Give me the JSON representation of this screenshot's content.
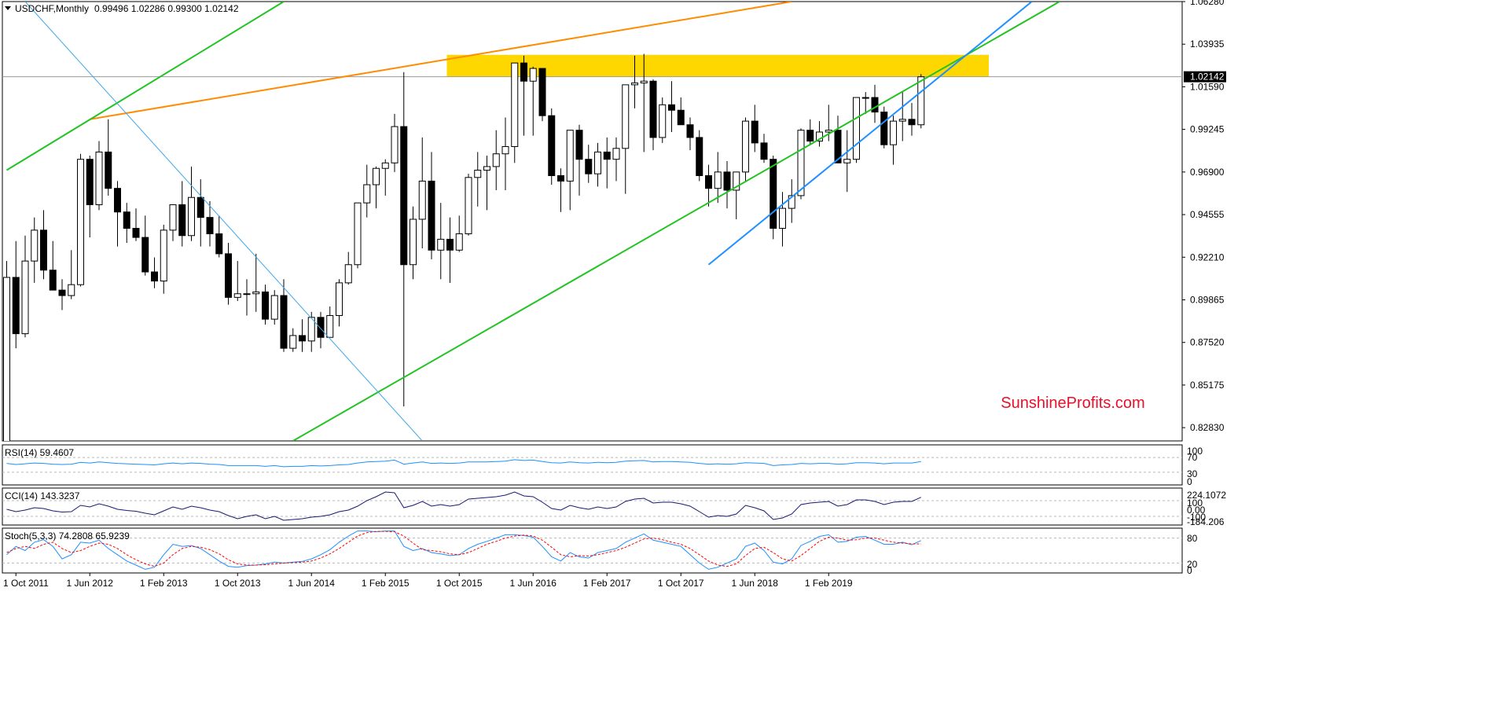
{
  "chart_header": {
    "symbol": "USDCHF,Monthly",
    "ohlc": "0.99496 1.02286 0.99300 1.02142"
  },
  "watermark": "SunshineProfits.com",
  "colors": {
    "bull_body": "#ffffff",
    "bear_body": "#000000",
    "resistance_zone": "#ffd700",
    "orange_line": "#ff8c00",
    "green_line": "#22c322",
    "blue_line": "#1e90ff",
    "light_blue_line": "#3ea8e8",
    "indicator_line": "#191970",
    "rsi_line": "#1e90ff",
    "stoch_signal": "#ff0000",
    "watermark": "#e8102a",
    "current_price_bg": "#000000"
  },
  "chart_data": [
    {
      "type": "candlestick",
      "title": "USDCHF,Monthly",
      "y_ticks": [
        "1.06280",
        "1.03935",
        "1.01590",
        "0.99245",
        "0.96900",
        "0.94555",
        "0.92210",
        "0.89865",
        "0.87520",
        "0.85175",
        "0.82830"
      ],
      "current_price": 1.02142,
      "current_price_label": "1.02142",
      "x_tick_labels": [
        "1 Oct 2011",
        "1 Jun 2012",
        "1 Feb 2013",
        "1 Oct 2013",
        "1 Jun 2014",
        "1 Feb 2015",
        "1 Oct 2015",
        "1 Jun 2016",
        "1 Feb 2017",
        "1 Oct 2017",
        "1 Jun 2018",
        "1 Feb 2019"
      ],
      "start_month": "2011-09",
      "candles": [
        [
          0.813,
          0.92,
          0.8,
          0.911
        ],
        [
          0.911,
          0.931,
          0.872,
          0.88
        ],
        [
          0.88,
          0.934,
          0.878,
          0.92
        ],
        [
          0.92,
          0.944,
          0.908,
          0.937
        ],
        [
          0.937,
          0.948,
          0.91,
          0.915
        ],
        [
          0.915,
          0.931,
          0.904,
          0.904
        ],
        [
          0.904,
          0.91,
          0.893,
          0.901
        ],
        [
          0.901,
          0.926,
          0.899,
          0.907
        ],
        [
          0.907,
          0.979,
          0.906,
          0.976
        ],
        [
          0.976,
          0.978,
          0.933,
          0.951
        ],
        [
          0.951,
          0.986,
          0.948,
          0.98
        ],
        [
          0.98,
          0.998,
          0.956,
          0.96
        ],
        [
          0.96,
          0.964,
          0.928,
          0.947
        ],
        [
          0.947,
          0.952,
          0.93,
          0.938
        ],
        [
          0.938,
          0.949,
          0.931,
          0.933
        ],
        [
          0.933,
          0.945,
          0.912,
          0.914
        ],
        [
          0.914,
          0.922,
          0.905,
          0.909
        ],
        [
          0.909,
          0.94,
          0.902,
          0.937
        ],
        [
          0.937,
          0.951,
          0.931,
          0.951
        ],
        [
          0.951,
          0.964,
          0.928,
          0.934
        ],
        [
          0.934,
          0.972,
          0.931,
          0.955
        ],
        [
          0.955,
          0.965,
          0.928,
          0.944
        ],
        [
          0.944,
          0.953,
          0.928,
          0.935
        ],
        [
          0.935,
          0.945,
          0.922,
          0.924
        ],
        [
          0.924,
          0.93,
          0.896,
          0.9
        ],
        [
          0.9,
          0.92,
          0.898,
          0.902
        ],
        [
          0.902,
          0.91,
          0.89,
          0.902
        ],
        [
          0.902,
          0.924,
          0.892,
          0.903
        ],
        [
          0.903,
          0.907,
          0.885,
          0.888
        ],
        [
          0.888,
          0.904,
          0.885,
          0.901
        ],
        [
          0.901,
          0.91,
          0.87,
          0.872
        ],
        [
          0.872,
          0.883,
          0.87,
          0.879
        ],
        [
          0.879,
          0.888,
          0.87,
          0.876
        ],
        [
          0.876,
          0.892,
          0.87,
          0.889
        ],
        [
          0.889,
          0.892,
          0.872,
          0.878
        ],
        [
          0.878,
          0.895,
          0.878,
          0.89
        ],
        [
          0.89,
          0.91,
          0.884,
          0.908
        ],
        [
          0.908,
          0.925,
          0.907,
          0.918
        ],
        [
          0.918,
          0.952,
          0.916,
          0.952
        ],
        [
          0.952,
          0.973,
          0.944,
          0.962
        ],
        [
          0.962,
          0.972,
          0.949,
          0.971
        ],
        [
          0.971,
          0.976,
          0.956,
          0.974
        ],
        [
          0.974,
          1.001,
          0.969,
          0.994
        ],
        [
          0.994,
          1.024,
          0.84,
          0.918
        ],
        [
          0.918,
          0.95,
          0.91,
          0.943
        ],
        [
          0.943,
          0.988,
          0.927,
          0.964
        ],
        [
          0.964,
          0.98,
          0.921,
          0.926
        ],
        [
          0.926,
          0.952,
          0.91,
          0.932
        ],
        [
          0.932,
          0.944,
          0.908,
          0.926
        ],
        [
          0.926,
          0.945,
          0.925,
          0.935
        ],
        [
          0.935,
          0.968,
          0.934,
          0.966
        ],
        [
          0.966,
          0.98,
          0.95,
          0.97
        ],
        [
          0.97,
          0.978,
          0.948,
          0.972
        ],
        [
          0.972,
          0.992,
          0.959,
          0.979
        ],
        [
          0.979,
          0.999,
          0.959,
          0.983
        ],
        [
          0.983,
          1.029,
          0.974,
          1.029
        ],
        [
          1.029,
          1.033,
          0.989,
          1.019
        ],
        [
          1.019,
          1.027,
          0.989,
          1.026
        ],
        [
          1.026,
          1.026,
          0.997,
          1.0
        ],
        [
          1.0,
          1.004,
          0.962,
          0.967
        ],
        [
          0.967,
          0.971,
          0.947,
          0.964
        ],
        [
          0.964,
          0.992,
          0.948,
          0.992
        ],
        [
          0.992,
          0.995,
          0.956,
          0.976
        ],
        [
          0.976,
          0.984,
          0.963,
          0.968
        ],
        [
          0.968,
          0.985,
          0.961,
          0.98
        ],
        [
          0.98,
          0.988,
          0.96,
          0.976
        ],
        [
          0.976,
          0.988,
          0.964,
          0.982
        ],
        [
          0.982,
          1.016,
          0.957,
          1.017
        ],
        [
          1.017,
          1.033,
          1.004,
          1.018
        ],
        [
          1.018,
          1.034,
          0.98,
          1.019
        ],
        [
          1.019,
          1.02,
          0.981,
          0.988
        ],
        [
          0.988,
          1.01,
          0.985,
          1.006
        ],
        [
          1.006,
          1.019,
          0.991,
          1.003
        ],
        [
          1.003,
          1.01,
          0.996,
          0.995
        ],
        [
          0.995,
          0.999,
          0.981,
          0.988
        ],
        [
          0.988,
          0.992,
          0.964,
          0.967
        ],
        [
          0.967,
          0.973,
          0.95,
          0.96
        ],
        [
          0.96,
          0.98,
          0.952,
          0.969
        ],
        [
          0.969,
          0.975,
          0.949,
          0.959
        ],
        [
          0.959,
          0.969,
          0.943,
          0.969
        ],
        [
          0.969,
          0.999,
          0.964,
          0.997
        ],
        [
          0.997,
          1.006,
          0.98,
          0.985
        ],
        [
          0.985,
          0.99,
          0.974,
          0.976
        ],
        [
          0.976,
          0.978,
          0.932,
          0.938
        ],
        [
          0.938,
          0.958,
          0.928,
          0.949
        ],
        [
          0.949,
          0.965,
          0.941,
          0.956
        ],
        [
          0.956,
          0.993,
          0.954,
          0.992
        ],
        [
          0.992,
          0.998,
          0.984,
          0.986
        ],
        [
          0.986,
          0.997,
          0.983,
          0.991
        ],
        [
          0.991,
          1.006,
          0.986,
          0.992
        ],
        [
          0.992,
          1.0,
          0.976,
          0.974
        ],
        [
          0.974,
          0.992,
          0.958,
          0.976
        ],
        [
          0.976,
          1.01,
          0.974,
          1.01
        ],
        [
          1.01,
          1.013,
          1.001,
          1.01
        ],
        [
          1.01,
          1.017,
          0.996,
          1.002
        ],
        [
          1.002,
          1.005,
          0.982,
          0.984
        ],
        [
          0.984,
          1.0,
          0.973,
          0.997
        ],
        [
          0.997,
          1.013,
          0.986,
          0.998
        ],
        [
          0.998,
          1.007,
          0.989,
          0.995
        ],
        [
          0.995,
          1.0229,
          0.993,
          1.0214
        ]
      ],
      "annotations": {
        "resistance_zone": {
          "start_index": 48,
          "end_index": 106,
          "low": 1.0214,
          "high": 1.0335
        },
        "lines": [
          {
            "color_key": "orange_line",
            "from": [
              9,
              0.998
            ],
            "to": [
              85,
              1.0628
            ]
          },
          {
            "color_key": "green_line",
            "from": [
              0,
              0.97
            ],
            "to": [
              30,
              1.0628
            ]
          },
          {
            "color_key": "green_line",
            "from": [
              31,
              0.821
            ],
            "to": [
              114,
              1.0628
            ]
          },
          {
            "color_key": "light_blue_line",
            "from": [
              2,
              1.0628
            ],
            "to": [
              45,
              0.821
            ]
          },
          {
            "color_key": "blue_line",
            "from": [
              76,
              0.918
            ],
            "to": [
              111,
              1.0628
            ]
          }
        ]
      }
    },
    {
      "type": "line",
      "title": "RSI(14) 59.4607",
      "ylim": [
        0,
        100
      ],
      "y_ticks": [
        "100",
        "70",
        "30",
        "0"
      ],
      "levels": [
        70,
        30
      ],
      "series": [
        {
          "values": [
            54,
            51,
            53,
            55,
            54,
            52,
            51,
            52,
            57,
            55,
            58,
            56,
            54,
            53,
            52,
            51,
            50,
            53,
            55,
            53,
            55,
            54,
            52,
            51,
            48,
            48,
            48,
            48,
            46,
            48,
            45,
            46,
            46,
            48,
            47,
            48,
            50,
            51,
            55,
            58,
            59,
            60,
            63,
            52,
            55,
            58,
            54,
            55,
            54,
            55,
            58,
            58,
            58,
            59,
            60,
            64,
            62,
            63,
            59,
            56,
            55,
            58,
            56,
            55,
            57,
            56,
            57,
            60,
            61,
            62,
            58,
            59,
            59,
            58,
            57,
            54,
            52,
            53,
            52,
            53,
            56,
            55,
            54,
            48,
            50,
            51,
            54,
            53,
            54,
            54,
            52,
            53,
            56,
            56,
            55,
            53,
            55,
            55,
            55,
            59
          ]
        }
      ]
    },
    {
      "type": "line",
      "title": "CCI(14) 143.3237",
      "y_ticks": [
        "224.1072",
        "100",
        "0.00",
        "-100",
        "-184.206"
      ],
      "levels": [
        100,
        -100
      ],
      "series": [
        {
          "values": [
            -10,
            -40,
            -20,
            10,
            0,
            -30,
            -45,
            -40,
            40,
            20,
            60,
            30,
            -10,
            -25,
            -35,
            -60,
            -80,
            -30,
            20,
            -10,
            30,
            10,
            -20,
            -40,
            -90,
            -130,
            -100,
            -80,
            -130,
            -100,
            -150,
            -140,
            -130,
            -110,
            -100,
            -80,
            -40,
            -20,
            30,
            100,
            150,
            210,
            200,
            10,
            40,
            90,
            30,
            50,
            30,
            50,
            120,
            130,
            140,
            150,
            170,
            210,
            160,
            150,
            80,
            0,
            -20,
            40,
            10,
            -10,
            20,
            0,
            20,
            90,
            120,
            130,
            70,
            80,
            80,
            60,
            30,
            -40,
            -110,
            -90,
            -100,
            -70,
            40,
            10,
            -30,
            -140,
            -120,
            -70,
            50,
            70,
            80,
            90,
            30,
            50,
            110,
            110,
            90,
            50,
            80,
            90,
            90,
            143
          ]
        }
      ]
    },
    {
      "type": "line",
      "title": "Stoch(5,3,3) 74.2808 65.9239",
      "ylim": [
        0,
        100
      ],
      "y_ticks": [
        "80",
        "20",
        "0"
      ],
      "levels": [
        80,
        20
      ],
      "series": [
        {
          "values": [
            40,
            60,
            50,
            70,
            76,
            60,
            30,
            40,
            70,
            68,
            75,
            55,
            40,
            25,
            15,
            5,
            10,
            40,
            65,
            60,
            62,
            55,
            40,
            25,
            12,
            10,
            14,
            15,
            18,
            22,
            20,
            22,
            24,
            30,
            40,
            52,
            70,
            85,
            97,
            97,
            95,
            97,
            97,
            60,
            50,
            55,
            45,
            42,
            38,
            40,
            55,
            65,
            72,
            80,
            88,
            88,
            86,
            82,
            60,
            35,
            25,
            45,
            35,
            32,
            45,
            50,
            55,
            70,
            80,
            90,
            75,
            70,
            65,
            60,
            40,
            20,
            5,
            10,
            20,
            30,
            60,
            68,
            50,
            22,
            18,
            30,
            62,
            72,
            84,
            88,
            70,
            72,
            82,
            84,
            75,
            65,
            65,
            70,
            64,
            74
          ]
        },
        {
          "values": [
            45,
            55,
            60,
            55,
            65,
            70,
            55,
            45,
            50,
            60,
            68,
            65,
            55,
            40,
            28,
            18,
            12,
            20,
            40,
            55,
            60,
            58,
            52,
            42,
            28,
            18,
            15,
            15,
            16,
            18,
            20,
            21,
            22,
            25,
            32,
            42,
            55,
            70,
            85,
            93,
            96,
            96,
            95,
            85,
            68,
            52,
            50,
            47,
            42,
            40,
            45,
            55,
            65,
            72,
            80,
            85,
            87,
            85,
            75,
            58,
            40,
            35,
            38,
            37,
            40,
            45,
            50,
            58,
            68,
            78,
            80,
            76,
            70,
            65,
            55,
            40,
            25,
            15,
            12,
            18,
            38,
            55,
            58,
            45,
            30,
            25,
            38,
            55,
            72,
            82,
            80,
            75,
            76,
            80,
            80,
            75,
            70,
            68,
            66,
            66
          ]
        }
      ]
    }
  ]
}
